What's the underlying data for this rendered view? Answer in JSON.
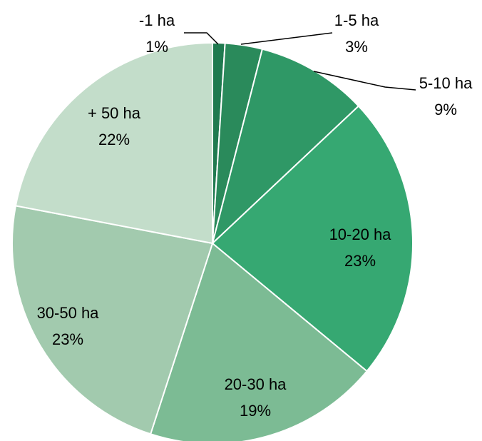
{
  "chart_data": {
    "type": "pie",
    "categories": [
      "-1 ha",
      "1-5 ha",
      "5-10 ha",
      "10-20 ha",
      "20-30 ha",
      "30-50 ha",
      "+ 50 ha"
    ],
    "values": [
      1,
      3,
      9,
      23,
      19,
      23,
      22
    ],
    "value_labels": [
      "1%",
      "3%",
      "9%",
      "23%",
      "19%",
      "23%",
      "22%"
    ],
    "colors": [
      "#1f7a4f",
      "#2a8a5b",
      "#2f9866",
      "#36a872",
      "#7cbb94",
      "#a2caae",
      "#c3ddca"
    ]
  }
}
